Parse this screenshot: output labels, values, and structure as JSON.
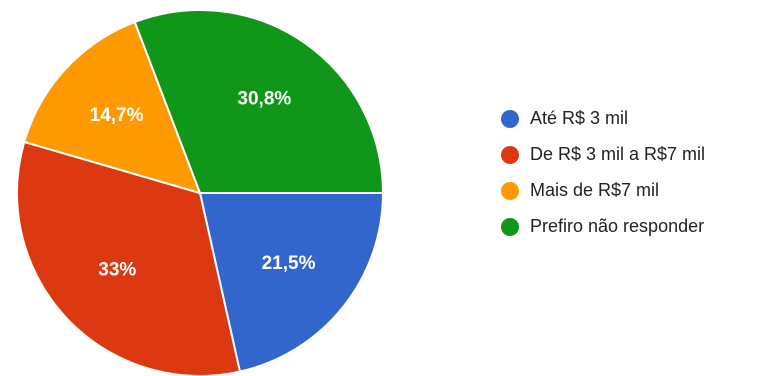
{
  "chart_data": {
    "type": "pie",
    "title": "",
    "legend_position": "right",
    "slices": [
      {
        "name": "Até R$ 3 mil",
        "value": 21.5,
        "label": "21,5%",
        "color": "#3366cc"
      },
      {
        "name": "De R$ 3 mil a R$7 mil",
        "value": 33.0,
        "label": "33%",
        "color": "#dc3912"
      },
      {
        "name": "Mais de R$7 mil",
        "value": 14.7,
        "label": "14,7%",
        "color": "#ff9900"
      },
      {
        "name": "Prefiro não responder",
        "value": 30.8,
        "label": "30,8%",
        "color": "#109618"
      }
    ]
  }
}
